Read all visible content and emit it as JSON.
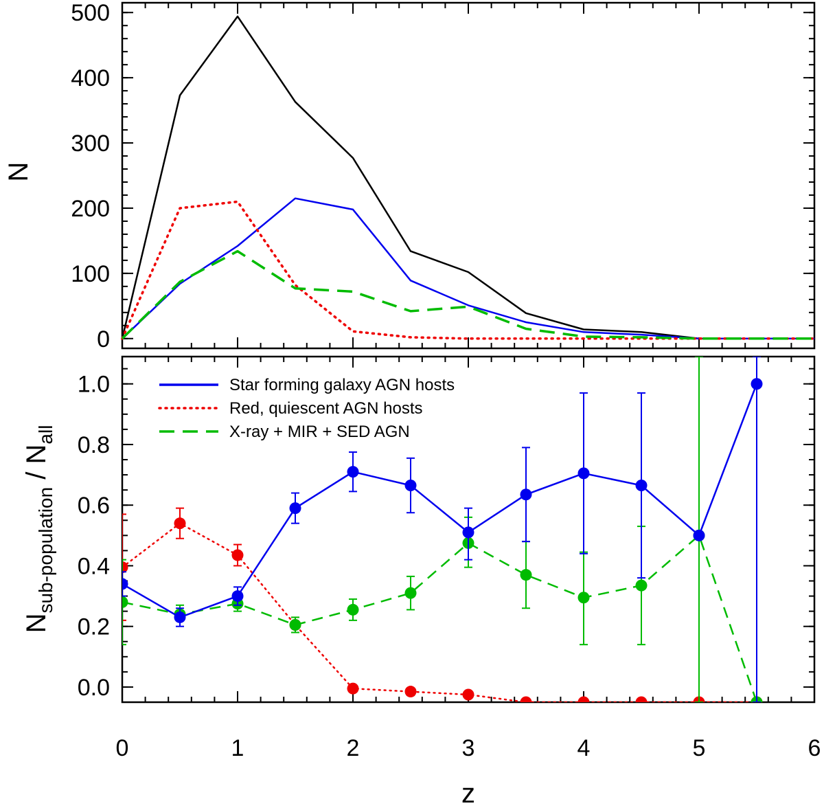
{
  "chart_data": [
    {
      "type": "line",
      "panel": "top",
      "xlabel": "",
      "ylabel": "N",
      "xlim": [
        0,
        6
      ],
      "ylim": [
        -15,
        515
      ],
      "yticks": [
        0,
        100,
        200,
        300,
        400,
        500
      ],
      "x": [
        0,
        0.5,
        1,
        1.5,
        2,
        2.5,
        3,
        3.5,
        4,
        4.5,
        5,
        5.5,
        6
      ],
      "series": [
        {
          "key": "all",
          "color": "#000000",
          "dash": "solid",
          "values": [
            0,
            373,
            494,
            363,
            277,
            134,
            102,
            39,
            14,
            10,
            0,
            0,
            0
          ]
        },
        {
          "key": "sf",
          "color": "#0000ee",
          "dash": "solid",
          "values": [
            0,
            84,
            142,
            215,
            198,
            89,
            51,
            25,
            10,
            6,
            0,
            0,
            0
          ]
        },
        {
          "key": "red",
          "color": "#ee0000",
          "dash": "dotted",
          "values": [
            0,
            200,
            210,
            82,
            11,
            2,
            0,
            0,
            0,
            0,
            0,
            0,
            0
          ]
        },
        {
          "key": "agn",
          "color": "#00bb00",
          "dash": "dashed",
          "values": [
            0,
            87,
            134,
            77,
            72,
            42,
            49,
            15,
            3,
            2,
            0,
            0,
            0
          ]
        }
      ]
    },
    {
      "type": "scatter",
      "panel": "bottom",
      "xlabel": "z",
      "ylabel_main": "N",
      "ylabel_sub": "sub-population",
      "ylabel_mid": " / N",
      "ylabel_sub2": "all",
      "xlim": [
        0,
        6
      ],
      "ylim": [
        -0.05,
        1.09
      ],
      "xticks": [
        "0",
        "1",
        "2",
        "3",
        "4",
        "5",
        "6"
      ],
      "yticks": [
        "0.0",
        "0.2",
        "0.4",
        "0.6",
        "0.8",
        "1.0"
      ],
      "legend": {
        "position": "top-left",
        "entries": [
          {
            "label": "Star forming galaxy AGN hosts",
            "color": "#0000ee",
            "dash": "solid"
          },
          {
            "label": "Red, quiescent AGN hosts",
            "color": "#ee0000",
            "dash": "dotted"
          },
          {
            "label": "X-ray + MIR + SED AGN",
            "color": "#00bb00",
            "dash": "dashed"
          }
        ]
      },
      "series": [
        {
          "key": "sf",
          "color": "#0000ee",
          "dash": "solid",
          "points": [
            {
              "x": 0,
              "y": 0.34,
              "lo": 0.3,
              "hi": 0.38
            },
            {
              "x": 0.5,
              "y": 0.23,
              "lo": 0.2,
              "hi": 0.26
            },
            {
              "x": 1,
              "y": 0.3,
              "lo": 0.27,
              "hi": 0.33
            },
            {
              "x": 1.5,
              "y": 0.59,
              "lo": 0.54,
              "hi": 0.64
            },
            {
              "x": 2,
              "y": 0.71,
              "lo": 0.645,
              "hi": 0.775
            },
            {
              "x": 2.5,
              "y": 0.665,
              "lo": 0.575,
              "hi": 0.755
            },
            {
              "x": 3,
              "y": 0.51,
              "lo": 0.42,
              "hi": 0.59
            },
            {
              "x": 3.5,
              "y": 0.635,
              "lo": 0.48,
              "hi": 0.79
            },
            {
              "x": 4,
              "y": 0.705,
              "lo": 0.44,
              "hi": 0.97
            },
            {
              "x": 4.5,
              "y": 0.665,
              "lo": 0.36,
              "hi": 0.97
            },
            {
              "x": 5,
              "y": 0.5,
              "lo": 0.5,
              "hi": 0.5
            },
            {
              "x": 5.5,
              "y": 1.0,
              "lo": -0.05,
              "hi": 1.09
            }
          ]
        },
        {
          "key": "red",
          "color": "#ee0000",
          "dash": "dotted",
          "points": [
            {
              "x": 0,
              "y": 0.395,
              "lo": 0.22,
              "hi": 0.57
            },
            {
              "x": 0.5,
              "y": 0.54,
              "lo": 0.49,
              "hi": 0.59
            },
            {
              "x": 1,
              "y": 0.435,
              "lo": 0.4,
              "hi": 0.47
            },
            {
              "x": 1.5,
              "y": 0.205,
              "lo": 0.18,
              "hi": 0.23
            },
            {
              "x": 2,
              "y": -0.005,
              "lo": -0.005,
              "hi": -0.005
            },
            {
              "x": 2.5,
              "y": -0.015,
              "lo": -0.015,
              "hi": -0.015
            },
            {
              "x": 3,
              "y": -0.025,
              "lo": -0.025,
              "hi": -0.025
            },
            {
              "x": 3.5,
              "y": -0.05,
              "lo": -0.05,
              "hi": -0.05
            },
            {
              "x": 4,
              "y": -0.05,
              "lo": -0.05,
              "hi": -0.05
            },
            {
              "x": 4.5,
              "y": -0.05,
              "lo": -0.05,
              "hi": -0.05
            },
            {
              "x": 5,
              "y": -0.05,
              "lo": -0.05,
              "hi": -0.05
            },
            {
              "x": 5.5,
              "y": -0.05,
              "lo": -0.05,
              "hi": -0.05
            }
          ]
        },
        {
          "key": "agn",
          "color": "#00bb00",
          "dash": "dashed",
          "points": [
            {
              "x": 0,
              "y": 0.28,
              "lo": 0.14,
              "hi": 0.42
            },
            {
              "x": 0.5,
              "y": 0.24,
              "lo": 0.22,
              "hi": 0.27
            },
            {
              "x": 1,
              "y": 0.275,
              "lo": 0.25,
              "hi": 0.3
            },
            {
              "x": 1.5,
              "y": 0.205,
              "lo": 0.18,
              "hi": 0.23
            },
            {
              "x": 2,
              "y": 0.255,
              "lo": 0.22,
              "hi": 0.29
            },
            {
              "x": 2.5,
              "y": 0.31,
              "lo": 0.255,
              "hi": 0.365
            },
            {
              "x": 3,
              "y": 0.475,
              "lo": 0.395,
              "hi": 0.56
            },
            {
              "x": 3.5,
              "y": 0.37,
              "lo": 0.26,
              "hi": 0.48
            },
            {
              "x": 4,
              "y": 0.295,
              "lo": 0.14,
              "hi": 0.445
            },
            {
              "x": 4.5,
              "y": 0.335,
              "lo": 0.14,
              "hi": 0.53
            },
            {
              "x": 5,
              "y": 0.5,
              "lo": -0.05,
              "hi": 1.09
            },
            {
              "x": 5.5,
              "y": -0.05,
              "lo": -0.05,
              "hi": -0.05
            }
          ]
        }
      ]
    }
  ]
}
